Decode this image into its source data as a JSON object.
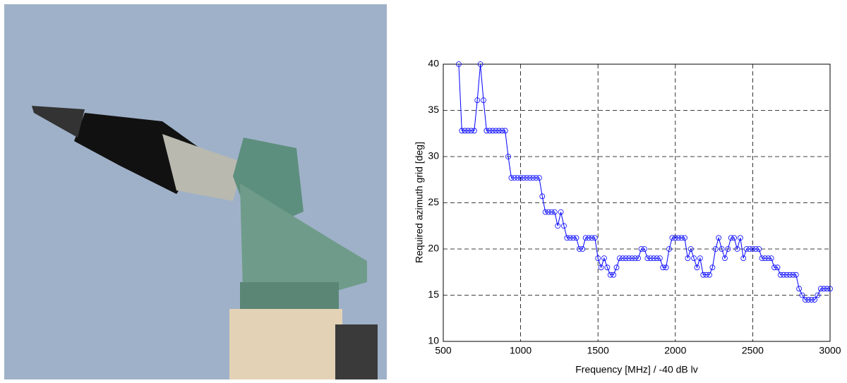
{
  "chart_data": {
    "type": "line",
    "xlabel": "Frequency [MHz] / -40 dB lv",
    "ylabel": "Required azimuth grid [deg]",
    "x": [
      600,
      620,
      640,
      660,
      680,
      700,
      720,
      740,
      760,
      780,
      800,
      820,
      840,
      860,
      880,
      900,
      920,
      940,
      960,
      980,
      1000,
      1020,
      1040,
      1060,
      1080,
      1100,
      1120,
      1140,
      1160,
      1180,
      1200,
      1220,
      1240,
      1260,
      1280,
      1300,
      1320,
      1340,
      1360,
      1380,
      1400,
      1420,
      1440,
      1460,
      1480,
      1500,
      1520,
      1540,
      1560,
      1580,
      1600,
      1620,
      1640,
      1660,
      1680,
      1700,
      1720,
      1740,
      1760,
      1780,
      1800,
      1820,
      1840,
      1860,
      1880,
      1900,
      1920,
      1940,
      1960,
      1980,
      2000,
      2020,
      2040,
      2060,
      2080,
      2100,
      2120,
      2140,
      2160,
      2180,
      2200,
      2220,
      2240,
      2260,
      2280,
      2300,
      2320,
      2340,
      2360,
      2380,
      2400,
      2420,
      2440,
      2460,
      2480,
      2500,
      2520,
      2540,
      2560,
      2580,
      2600,
      2620,
      2640,
      2660,
      2680,
      2700,
      2720,
      2740,
      2760,
      2780,
      2800,
      2820,
      2840,
      2860,
      2880,
      2900,
      2920,
      2940,
      2960,
      2980,
      3000
    ],
    "series": [
      {
        "color": "#0000ff",
        "values": [
          40,
          32.8,
          32.8,
          32.8,
          32.8,
          32.8,
          36.1,
          40,
          36.1,
          32.8,
          32.8,
          32.8,
          32.8,
          32.8,
          32.8,
          32.8,
          30,
          27.7,
          27.7,
          27.7,
          27.7,
          27.7,
          27.7,
          27.7,
          27.7,
          27.7,
          27.7,
          25.7,
          24,
          24,
          24,
          24,
          22.5,
          24,
          22.5,
          21.2,
          21.2,
          21.2,
          21.2,
          20,
          20,
          21.2,
          21.2,
          21.2,
          21.2,
          19,
          18,
          19,
          18,
          17.2,
          17.2,
          18,
          19,
          19,
          19,
          19,
          19,
          19,
          19,
          20,
          20,
          19,
          19,
          19,
          19,
          19,
          18,
          18,
          20,
          21.2,
          21.2,
          21.2,
          21.2,
          21.2,
          19,
          20,
          19,
          18,
          19,
          17.2,
          17.2,
          17.2,
          18,
          20,
          21.2,
          20,
          19,
          20,
          21.2,
          21.2,
          20,
          21.2,
          19,
          20,
          20,
          20,
          20,
          20,
          19,
          19,
          19,
          19,
          18,
          18,
          17.2,
          17.2,
          17.2,
          17.2,
          17.2,
          17.2,
          15.7,
          15,
          14.5,
          14.5,
          14.5,
          14.5,
          15,
          15.7,
          15.7,
          15.7,
          15.7
        ]
      }
    ],
    "xlim": [
      500,
      3000
    ],
    "xticks": [
      500,
      1000,
      1500,
      2000,
      2500,
      3000
    ],
    "ylim": [
      10,
      40
    ],
    "yticks": [
      10,
      15,
      20,
      25,
      30,
      35,
      40
    ],
    "grid": true
  }
}
